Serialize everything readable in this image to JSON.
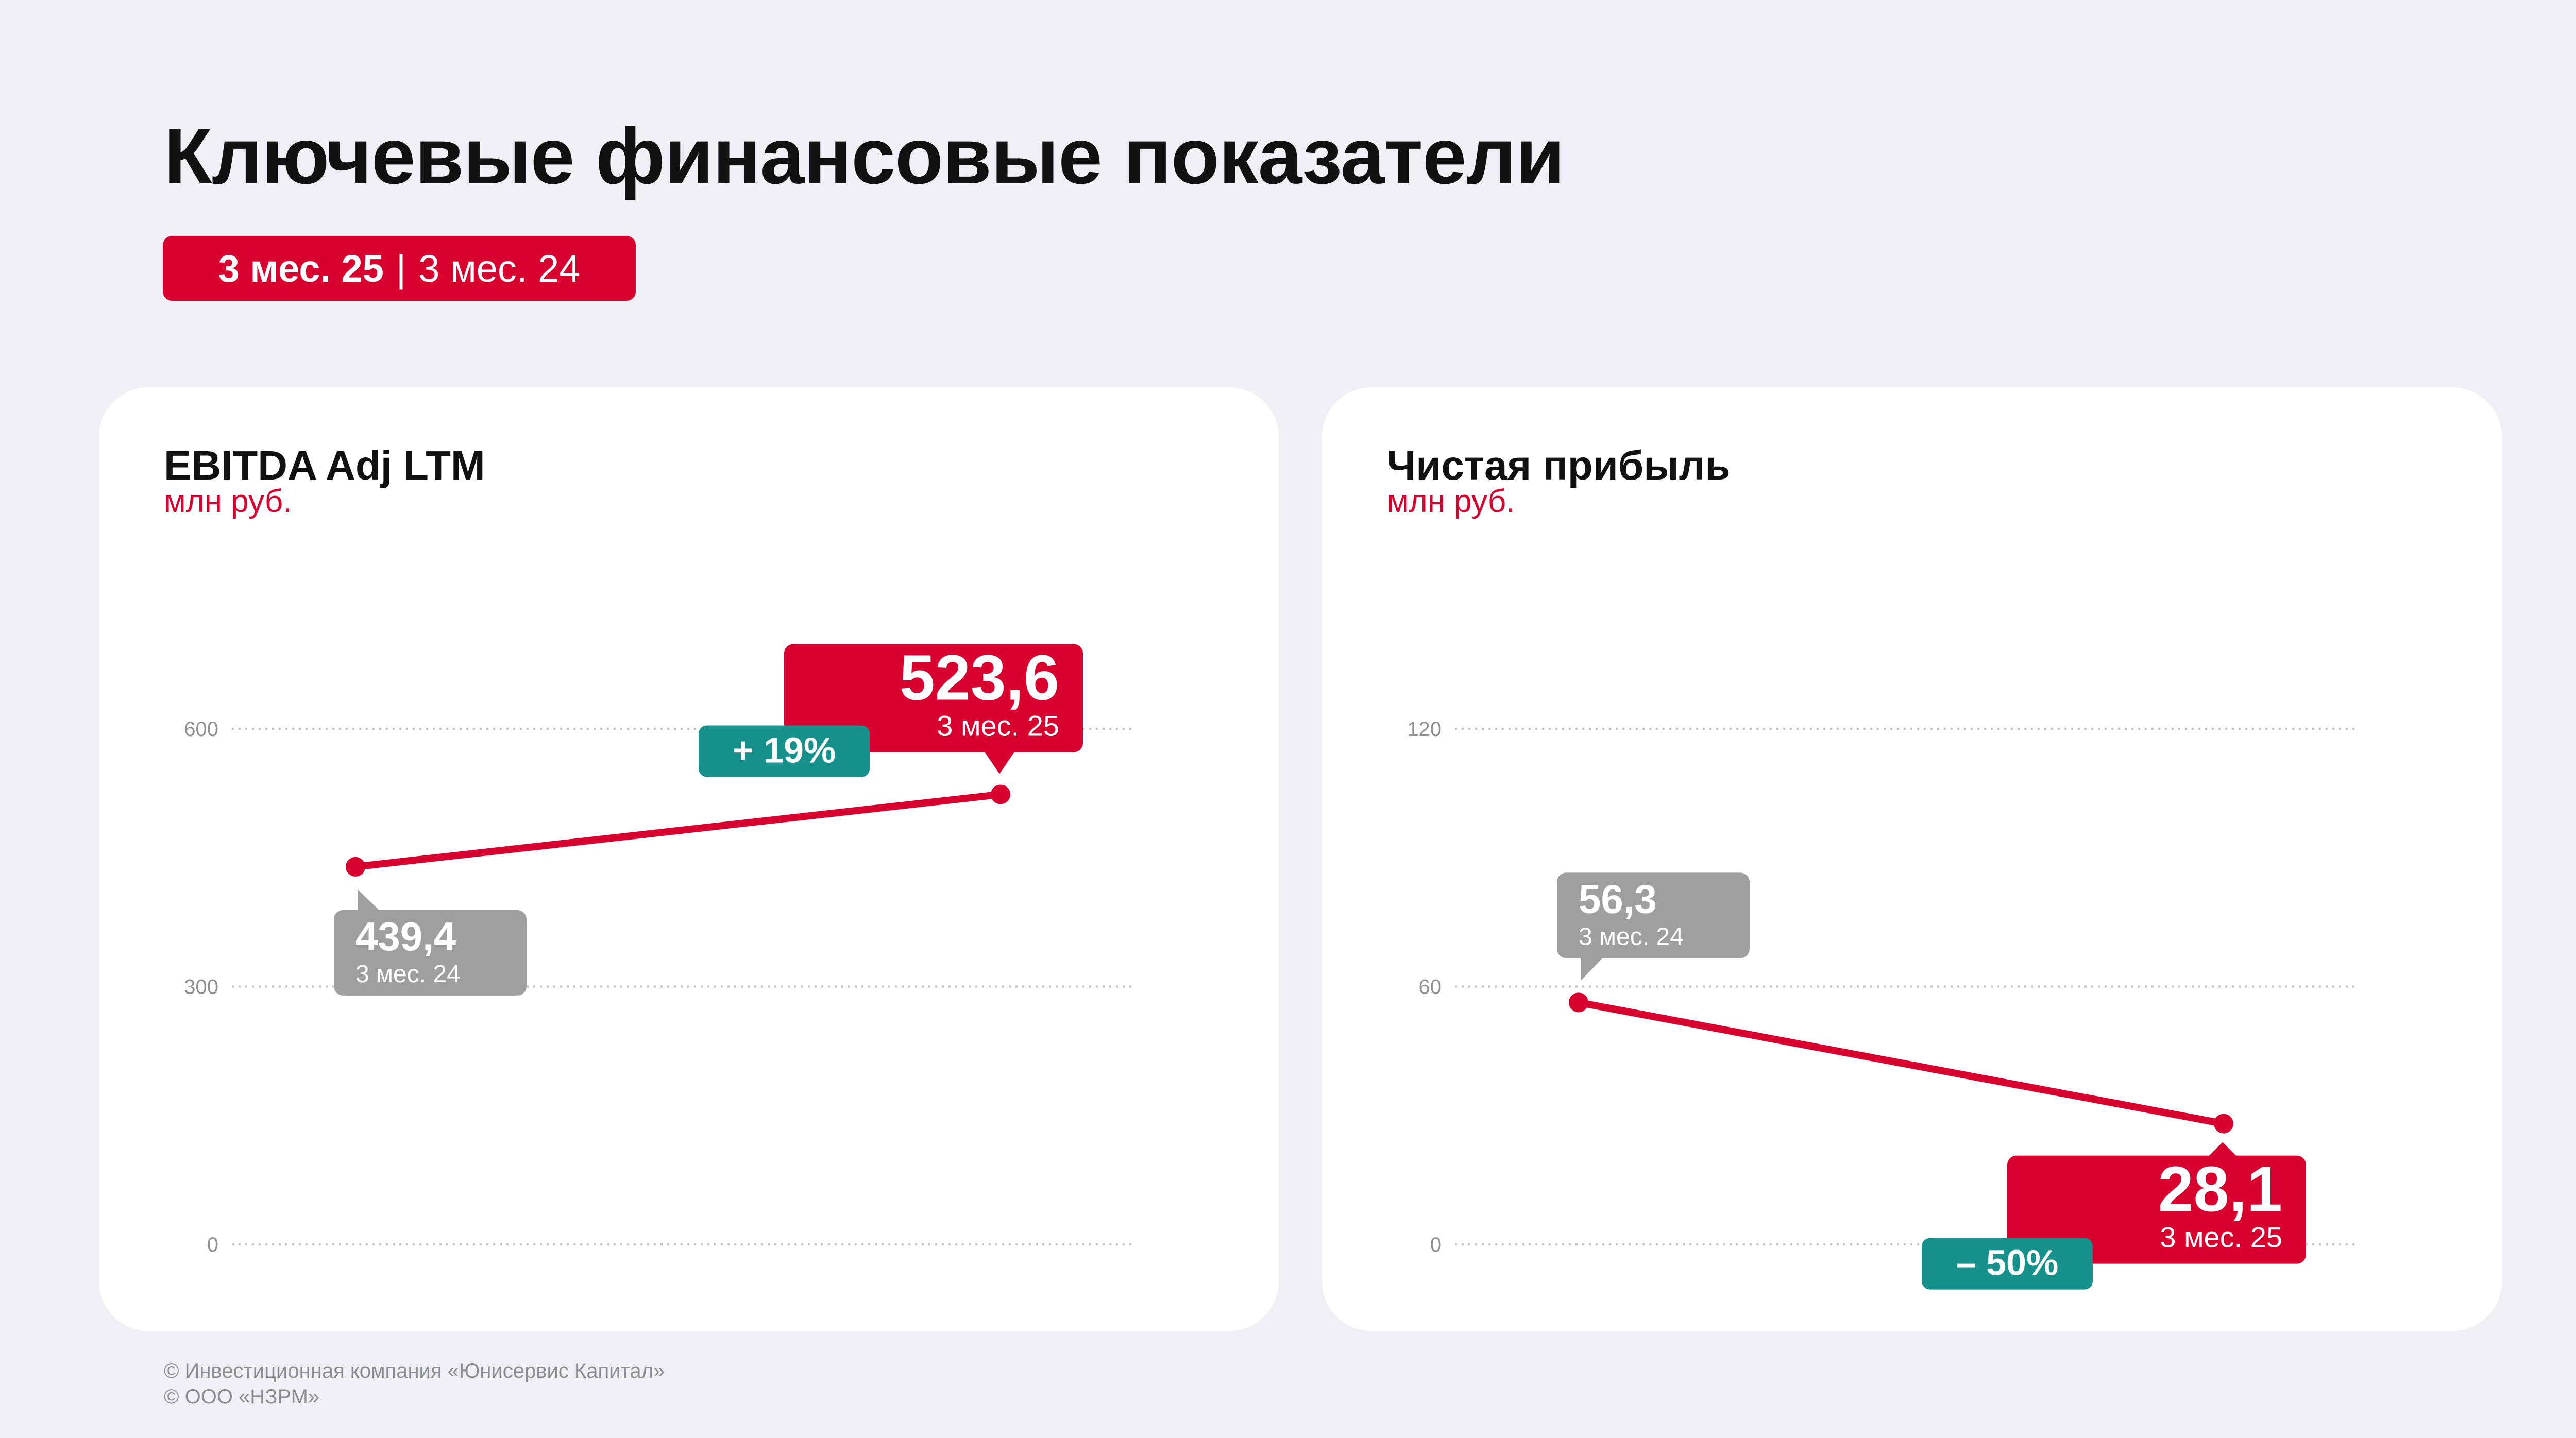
{
  "page": {
    "title": "Ключевые финансовые показатели",
    "period_current": "3 мес. 25",
    "period_separator": "|",
    "period_previous": "3 мес. 24"
  },
  "footer": {
    "line1": "© Инвестиционная компания «Юнисервис Капитал»",
    "line2": "© ООО «НЗРМ»"
  },
  "colors": {
    "accent_red": "#d8002e",
    "prev_gray": "#9f9f9f",
    "change_teal": "#17918c",
    "background": "#f0eff6"
  },
  "chart_data": [
    {
      "type": "line",
      "title": "EBITDA Adj LTM",
      "ylabel": "млн руб.",
      "ylim": [
        0,
        600
      ],
      "yticks": [
        0,
        300,
        600
      ],
      "ytick_labels": [
        "0",
        "300",
        "600"
      ],
      "grid": true,
      "points": [
        {
          "value": 439.4,
          "label": "439,4",
          "period": "3 мес. 24",
          "kind": "previous"
        },
        {
          "value": 523.6,
          "label": "523,6",
          "period": "3 мес. 25",
          "kind": "current"
        }
      ],
      "change": "+ 19%"
    },
    {
      "type": "line",
      "title": "Чистая прибыль",
      "ylabel": "млн руб.",
      "ylim": [
        0,
        120
      ],
      "yticks": [
        0,
        60,
        120
      ],
      "ytick_labels": [
        "0",
        "60",
        "120"
      ],
      "grid": true,
      "points": [
        {
          "value": 56.3,
          "label": "56,3",
          "period": "3 мес. 24",
          "kind": "previous"
        },
        {
          "value": 28.1,
          "label": "28,1",
          "period": "3 мес. 25",
          "kind": "current"
        }
      ],
      "change": "– 50%"
    }
  ]
}
